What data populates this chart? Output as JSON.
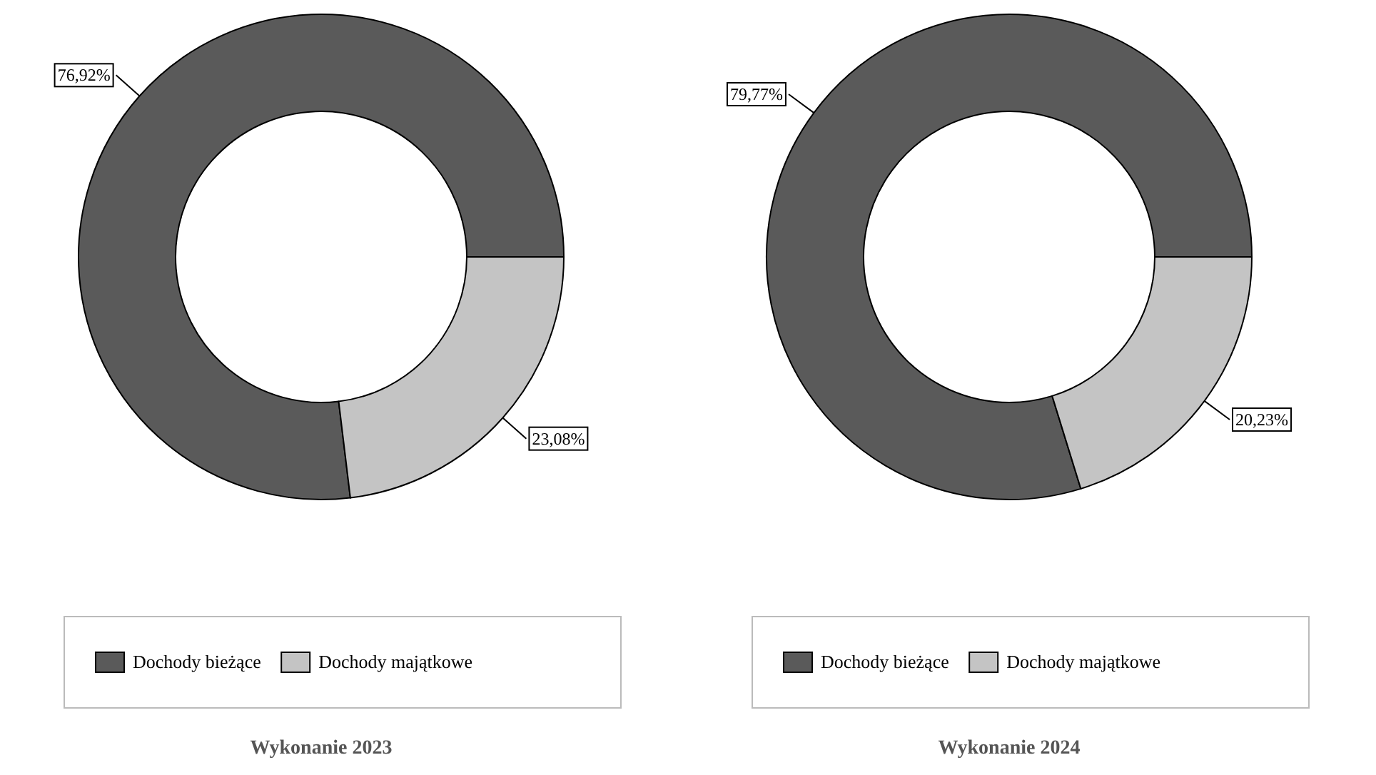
{
  "chart_data": [
    {
      "type": "donut",
      "title": "Wykonanie 2023",
      "categories": [
        "Dochody bieżące",
        "Dochody majątkowe"
      ],
      "values": [
        76.92,
        23.08
      ],
      "value_labels": [
        "76,92%",
        "23,08%"
      ],
      "colors": [
        "#5a5a5a",
        "#c4c4c4"
      ],
      "legend": "bottom"
    },
    {
      "type": "donut",
      "title": "Wykonanie 2024",
      "categories": [
        "Dochody bieżące",
        "Dochody majątkowe"
      ],
      "values": [
        79.77,
        20.23
      ],
      "value_labels": [
        "79,77%",
        "20,23%"
      ],
      "colors": [
        "#5a5a5a",
        "#c4c4c4"
      ],
      "legend": "bottom"
    }
  ]
}
